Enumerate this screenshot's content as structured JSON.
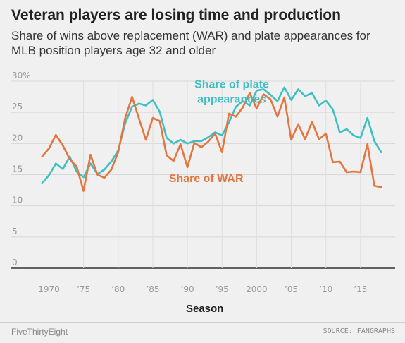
{
  "header": {
    "title": "Veteran players are losing time and production",
    "subtitle": "Share of wins above replacement (WAR) and plate appearances for MLB position players age 32 and older"
  },
  "footer": {
    "brand": "FiveThirtyEight",
    "source": "SOURCE: FANGRAPHS"
  },
  "chart_data": {
    "type": "line",
    "xlabel": "Season",
    "ylabel": "",
    "xlim": [
      1967,
      2020
    ],
    "ylim": [
      0,
      30
    ],
    "grid": true,
    "y_ticks": [
      0,
      5,
      10,
      15,
      20,
      25,
      30
    ],
    "y_tick_labels": [
      "0",
      "5",
      "10",
      "15",
      "20",
      "25",
      "30%"
    ],
    "x_ticks": [
      1970,
      1975,
      1980,
      1985,
      1990,
      1995,
      2000,
      2005,
      2010,
      2015
    ],
    "x_tick_labels": [
      "1970",
      "’75",
      "’80",
      "’85",
      "’90",
      "’95",
      "2000",
      "’05",
      "’10",
      "’15"
    ],
    "x": [
      1969,
      1970,
      1971,
      1972,
      1973,
      1974,
      1975,
      1976,
      1977,
      1978,
      1979,
      1980,
      1981,
      1982,
      1983,
      1984,
      1985,
      1986,
      1987,
      1988,
      1989,
      1990,
      1991,
      1992,
      1993,
      1994,
      1995,
      1996,
      1997,
      1998,
      1999,
      2000,
      2001,
      2002,
      2003,
      2004,
      2005,
      2006,
      2007,
      2008,
      2009,
      2010,
      2011,
      2012,
      2013,
      2014,
      2015,
      2016,
      2017,
      2018
    ],
    "series": [
      {
        "name": "Share of plate appearances",
        "color": "#3fbfc3",
        "values": [
          13.6,
          14.9,
          16.8,
          15.9,
          17.9,
          15.5,
          14.6,
          16.8,
          15.1,
          15.8,
          17.1,
          18.9,
          23.2,
          25.9,
          26.4,
          26.1,
          27.0,
          25.1,
          20.9,
          20.0,
          20.6,
          20.0,
          20.4,
          20.4,
          21.0,
          21.8,
          21.3,
          23.4,
          25.9,
          26.8,
          26.1,
          28.5,
          28.7,
          27.8,
          26.8,
          29.0,
          27.0,
          28.7,
          27.6,
          28.1,
          26.1,
          26.9,
          25.5,
          21.8,
          22.3,
          21.3,
          20.9,
          24.1,
          20.4,
          18.6
        ]
      },
      {
        "name": "Share of WAR",
        "color": "#e5753e",
        "values": [
          17.9,
          19.2,
          21.4,
          19.7,
          17.5,
          16.3,
          12.4,
          18.2,
          15.0,
          14.5,
          15.8,
          18.6,
          24.0,
          27.5,
          24.0,
          20.6,
          24.1,
          23.6,
          18.1,
          17.2,
          19.9,
          16.2,
          20.1,
          19.4,
          20.3,
          21.6,
          18.6,
          24.8,
          24.3,
          25.8,
          28.1,
          25.6,
          27.9,
          27.1,
          24.3,
          27.4,
          20.6,
          23.1,
          20.7,
          23.5,
          20.7,
          21.6,
          17.0,
          17.1,
          15.4,
          15.5,
          15.4,
          19.9,
          13.2,
          13.0
        ]
      }
    ]
  }
}
